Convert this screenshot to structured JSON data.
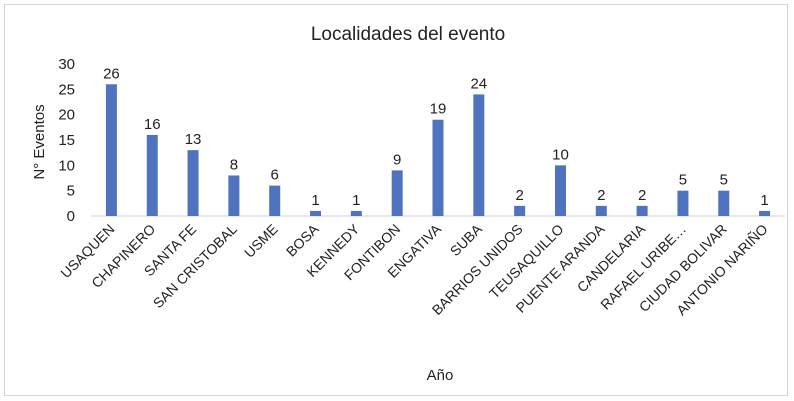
{
  "chart_data": {
    "type": "bar",
    "title": "Localidades del evento",
    "xlabel": "Año",
    "ylabel": "N° Eventos",
    "ylim": [
      0,
      30
    ],
    "yticks": [
      0,
      5,
      10,
      15,
      20,
      25,
      30
    ],
    "grid": false,
    "legend": "none",
    "bar_color": "#4f73be",
    "categories": [
      "USAQUEN",
      "CHAPINERO",
      "SANTA FE",
      "SAN CRISTOBAL",
      "USME",
      "BOSA",
      "KENNEDY",
      "FONTIBON",
      "ENGATIVA",
      "SUBA",
      "BARRIOS UNIDOS",
      "TEUSAQUILLO",
      "PUENTE ARANDA",
      "CANDELARIA",
      "RAFAEL URIBE…",
      "CIUDAD BOLIVAR",
      "ANTONIO NARIÑO"
    ],
    "values": [
      26,
      16,
      13,
      8,
      6,
      1,
      1,
      9,
      19,
      24,
      2,
      10,
      2,
      2,
      5,
      5,
      1
    ]
  }
}
